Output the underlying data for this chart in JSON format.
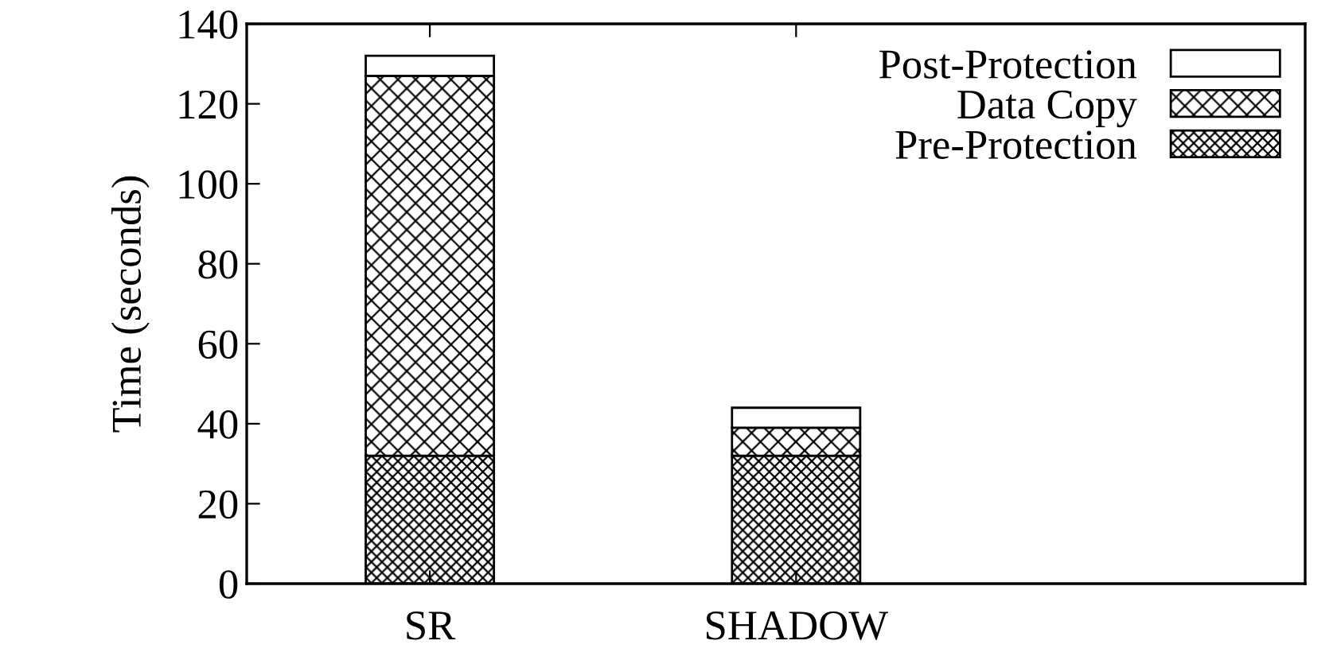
{
  "chart_data": {
    "type": "bar",
    "stacked": true,
    "ylabel": "Time (seconds)",
    "categories": [
      "SR",
      "SHADOW"
    ],
    "series": [
      {
        "name": "Pre-Protection",
        "color": "#000000",
        "values": [
          32,
          32
        ]
      },
      {
        "name": "Data Copy",
        "color": "#000000",
        "values": [
          95,
          7
        ]
      },
      {
        "name": "Post-Protection",
        "color": "#ffffff",
        "values": [
          5,
          5
        ]
      }
    ],
    "ylim": [
      0,
      140
    ],
    "yticks": [
      0,
      20,
      40,
      60,
      80,
      100,
      120,
      140
    ],
    "grid": false,
    "legend": "top right"
  }
}
